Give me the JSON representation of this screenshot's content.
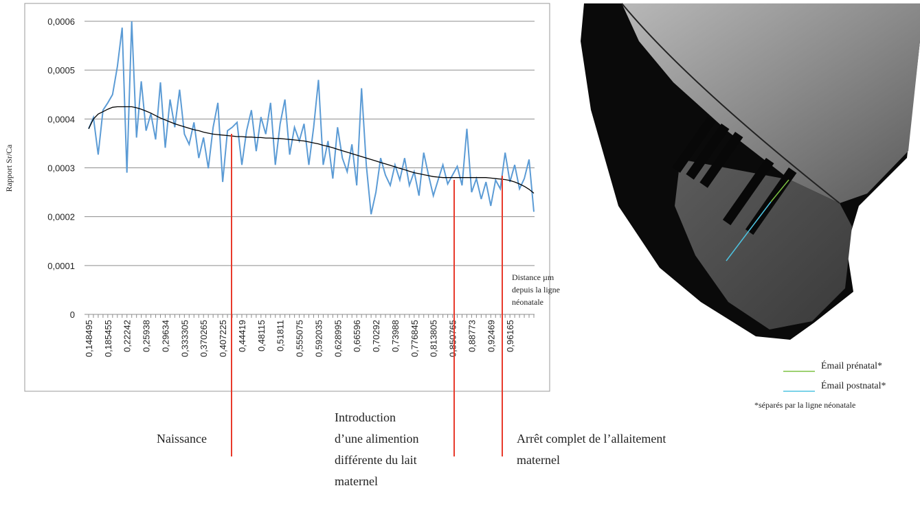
{
  "chart_data": {
    "type": "line",
    "y_label": "Rapport Sr/Ca",
    "x_label_lines": [
      "Distance µm",
      "depuis la ligne",
      "néonatale"
    ],
    "categories": [
      "0,148495",
      null,
      null,
      null,
      "0,185455",
      null,
      null,
      null,
      "0,22242",
      null,
      null,
      null,
      "0,25938",
      null,
      null,
      null,
      "0,29634",
      null,
      null,
      null,
      "0,333305",
      null,
      null,
      null,
      "0,370265",
      null,
      null,
      null,
      "0,407225",
      null,
      null,
      null,
      "0,44419",
      null,
      null,
      null,
      "0,48115",
      null,
      null,
      null,
      "0,51811",
      null,
      null,
      null,
      "0,555075",
      null,
      null,
      null,
      "0,592035",
      null,
      null,
      null,
      "0,628995",
      null,
      null,
      null,
      "0,66596",
      null,
      null,
      null,
      "0,70292",
      null,
      null,
      null,
      "0,73988",
      null,
      null,
      null,
      "0,776845",
      null,
      null,
      null,
      "0,813805",
      null,
      null,
      null,
      "0,850765",
      null,
      null,
      null,
      "0,88773",
      null,
      null,
      null,
      "0,92469",
      null,
      null,
      null,
      "0,96165",
      null,
      null,
      null,
      null,
      null
    ],
    "series": [
      {
        "color": "#5b9bd5",
        "values": [
          0.00038,
          0.000403,
          0.000327,
          0.000418,
          0.000433,
          0.00045,
          0.000507,
          0.000587,
          0.00029,
          0.0006,
          0.000362,
          0.000477,
          0.000376,
          0.000411,
          0.000358,
          0.000475,
          0.000341,
          0.00044,
          0.000383,
          0.00046,
          0.000369,
          0.000348,
          0.000393,
          0.00032,
          0.000362,
          0.000299,
          0.000383,
          0.000433,
          0.000271,
          0.000376,
          0.000383,
          0.000393,
          0.000306,
          0.000376,
          0.000418,
          0.000334,
          0.000404,
          0.000369,
          0.000433,
          0.000306,
          0.00039,
          0.00044,
          0.000327,
          0.000383,
          0.000355,
          0.00039,
          0.000306,
          0.000383,
          0.00048,
          0.000306,
          0.000355,
          0.000278,
          0.000383,
          0.00032,
          0.000292,
          0.000348,
          0.000264,
          0.000463,
          0.000306,
          0.000205,
          0.00025,
          0.00032,
          0.000285,
          0.000264,
          0.000306,
          0.000275,
          0.00032,
          0.000264,
          0.000292,
          0.000243,
          0.000331,
          0.000285,
          0.000243,
          0.000275,
          0.000306,
          0.000267,
          0.000285,
          0.000303,
          0.000264,
          0.00038,
          0.00025,
          0.000278,
          0.000236,
          0.000271,
          0.000222,
          0.000275,
          0.000257,
          0.000331,
          0.000271,
          0.000306,
          0.000257,
          0.000278,
          0.000317,
          0.00021
        ]
      },
      {
        "color": "#000000",
        "values": [
          0.00038,
          0.0004,
          0.00041,
          0.000415,
          0.00042,
          0.000424,
          0.000425,
          0.000425,
          0.000425,
          0.000425,
          0.000423,
          0.00042,
          0.000416,
          0.000412,
          0.000407,
          0.000402,
          0.000398,
          0.000394,
          0.00039,
          0.000387,
          0.000384,
          0.000381,
          0.000378,
          0.000376,
          0.000373,
          0.000371,
          0.000369,
          0.000368,
          0.000367,
          0.000366,
          0.000365,
          0.000364,
          0.000364,
          0.000363,
          0.000363,
          0.000362,
          0.000362,
          0.000361,
          0.000361,
          0.00036,
          0.00036,
          0.000359,
          0.000358,
          0.000357,
          0.000356,
          0.000355,
          0.000353,
          0.000351,
          0.000349,
          0.000346,
          0.000344,
          0.000341,
          0.000338,
          0.000335,
          0.000332,
          0.000329,
          0.000326,
          0.000323,
          0.00032,
          0.000317,
          0.000314,
          0.000311,
          0.000308,
          0.000305,
          0.000302,
          0.000299,
          0.000296,
          0.000293,
          0.00029,
          0.000288,
          0.000286,
          0.000284,
          0.000282,
          0.000281,
          0.00028,
          0.00028,
          0.00028,
          0.00028,
          0.00028,
          0.00028,
          0.00028,
          0.00028,
          0.00028,
          0.00028,
          0.000279,
          0.000278,
          0.000277,
          0.000276,
          0.000274,
          0.000271,
          0.000267,
          0.000262,
          0.000256,
          0.000248
        ]
      }
    ],
    "ylim": [
      0,
      0.0006
    ],
    "yticks": [
      0,
      {
        "value": 0.0001,
        "label": "0,0001"
      },
      {
        "value": 0.0002,
        "label": "0,0002"
      },
      {
        "value": 0.0003,
        "label": "0,0003"
      },
      {
        "value": 0.0004,
        "label": "0,0004"
      },
      {
        "value": 0.0005,
        "label": "0,0005"
      },
      {
        "value": 0.0006,
        "label": "0,0006"
      }
    ],
    "grid": true,
    "annotations": [
      {
        "lines": [
          "Naissance"
        ]
      },
      {
        "lines": [
          "Introduction",
          "d’une alimention",
          "différente du lait",
          "maternel"
        ]
      },
      {
        "lines": [
          "Arrêt complet de l’allaitement",
          "maternel"
        ]
      }
    ]
  },
  "photo_legend": {
    "entries": [
      {
        "label": "Émail prénatal*",
        "color": "#7dc242"
      },
      {
        "label": "Émail postnatal*",
        "color": "#4ec3e0"
      }
    ],
    "note": "*séparés par la ligne néonatale"
  }
}
